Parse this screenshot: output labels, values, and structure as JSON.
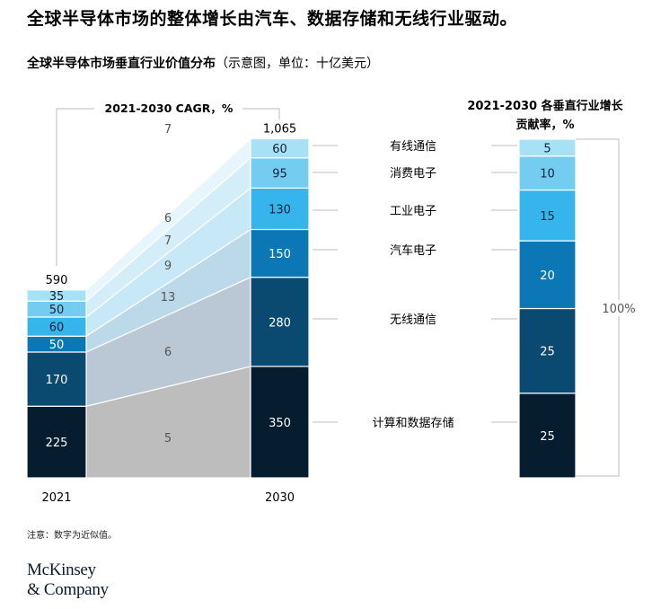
{
  "headline": "全球半导体市场的整体增长由汽车、数据存储和无线行业驱动。",
  "subtitle": {
    "title": "全球半导体市场垂直行业价值分布",
    "unit": "（示意图，单位：十亿美元）"
  },
  "note": "注意：数字为近似值。",
  "logo": {
    "line1": "McKinsey",
    "line2": "& Company"
  },
  "colors": [
    "#061c2f",
    "#0b4a70",
    "#0b78b5",
    "#36b5ec",
    "#74ccf0",
    "#a6e1f5"
  ],
  "chart_data": [
    {
      "type": "bar",
      "stacked": true,
      "categories": [
        "2021",
        "2030"
      ],
      "totals": [
        "590",
        "1,065"
      ],
      "segment_labels": [
        "计算和数据存储",
        "无线通信",
        "汽车电子",
        "工业电子",
        "消费电子",
        "有线通信"
      ],
      "series": [
        {
          "name": "计算和数据存储",
          "values": [
            225,
            350
          ]
        },
        {
          "name": "无线通信",
          "values": [
            170,
            280
          ]
        },
        {
          "name": "汽车电子",
          "values": [
            50,
            150
          ]
        },
        {
          "name": "工业电子",
          "values": [
            60,
            130
          ]
        },
        {
          "name": "消费电子",
          "values": [
            50,
            95
          ]
        },
        {
          "name": "有线通信",
          "values": [
            35,
            60
          ]
        }
      ],
      "cagr_title": "2021-2030 CAGR，%",
      "cagr": [
        5,
        6,
        13,
        9,
        7,
        6
      ],
      "cagr_total": 7
    },
    {
      "type": "bar",
      "stacked": true,
      "title_line1": "2021-2030 各垂直行业增长",
      "title_line2": "贡献率，%",
      "values": [
        25,
        25,
        20,
        15,
        10,
        5
      ],
      "total_label": "100%"
    }
  ]
}
